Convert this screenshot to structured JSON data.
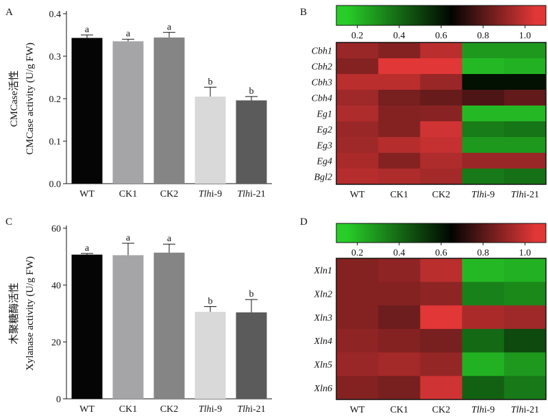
{
  "panels": {
    "a": "A",
    "b": "B",
    "c": "C",
    "d": "D"
  },
  "chart_data": [
    {
      "id": "A",
      "type": "bar",
      "categories": [
        {
          "pre": "",
          "it": "",
          "post": "WT"
        },
        {
          "pre": "",
          "it": "",
          "post": "CK1"
        },
        {
          "pre": "",
          "it": "",
          "post": "CK2"
        },
        {
          "pre": "",
          "it": "Tlh",
          "post": "i-9"
        },
        {
          "pre": "",
          "it": "Tlh",
          "post": "i-21"
        }
      ],
      "values": [
        0.343,
        0.335,
        0.344,
        0.205,
        0.196
      ],
      "errors": [
        0.007,
        0.005,
        0.012,
        0.022,
        0.009
      ],
      "letters": [
        "a",
        "a",
        "a",
        "b",
        "b"
      ],
      "colors": [
        "#050505",
        "#a5a5a8",
        "#858585",
        "#d9d9d9",
        "#5b5b5b"
      ],
      "ylabel_cn": "CMCase活性",
      "ylabel_en": "CMCase activity (U/g FW)",
      "ylim": [
        0,
        0.4
      ],
      "yticks": [
        "0.0",
        "0.1",
        "0.2",
        "0.3",
        "0.4"
      ],
      "ytick_values": [
        0,
        0.1,
        0.2,
        0.3,
        0.4
      ]
    },
    {
      "id": "B",
      "type": "heatmap",
      "colorbar_ticks": [
        "0.2",
        "0.4",
        "0.6",
        "0.8",
        "1.0"
      ],
      "colorbar_values": [
        0.2,
        0.4,
        0.6,
        0.8,
        1.0
      ],
      "colorbar_range": [
        0.1,
        1.1
      ],
      "rows": [
        "Cbh1",
        "Cbh2",
        "Cbh3",
        "Cbh4",
        "Eg1",
        "Eg2",
        "Eg3",
        "Eg4",
        "Bgl2"
      ],
      "columns": [
        {
          "pre": "",
          "it": "",
          "post": "WT"
        },
        {
          "pre": "",
          "it": "",
          "post": "CK1"
        },
        {
          "pre": "",
          "it": "",
          "post": "CK2"
        },
        {
          "pre": "",
          "it": "Tlh",
          "post": "i-9"
        },
        {
          "pre": "",
          "it": "Tlh",
          "post": "i-21"
        }
      ],
      "values": [
        [
          0.92,
          0.88,
          0.98,
          0.28,
          0.28
        ],
        [
          0.88,
          1.05,
          1.05,
          0.2,
          0.22
        ],
        [
          0.98,
          0.98,
          0.92,
          0.62,
          0.62
        ],
        [
          0.93,
          0.86,
          0.83,
          0.78,
          0.82
        ],
        [
          0.96,
          0.88,
          0.89,
          0.2,
          0.2
        ],
        [
          0.92,
          0.88,
          1.02,
          0.35,
          0.37
        ],
        [
          0.93,
          0.97,
          1.0,
          0.28,
          0.28
        ],
        [
          0.95,
          0.88,
          0.96,
          0.92,
          0.92
        ],
        [
          0.97,
          0.96,
          0.94,
          0.36,
          0.38
        ]
      ]
    },
    {
      "id": "C",
      "type": "bar",
      "categories": [
        {
          "pre": "",
          "it": "",
          "post": "WT"
        },
        {
          "pre": "",
          "it": "",
          "post": "CK1"
        },
        {
          "pre": "",
          "it": "",
          "post": "CK2"
        },
        {
          "pre": "",
          "it": "Tlh",
          "post": "i-9"
        },
        {
          "pre": "",
          "it": "Tlh",
          "post": "i-21"
        }
      ],
      "values": [
        50.7,
        50.5,
        51.4,
        30.6,
        30.4
      ],
      "errors": [
        0.4,
        4.2,
        3.0,
        1.8,
        4.5
      ],
      "letters": [
        "a",
        "a",
        "a",
        "b",
        "b"
      ],
      "colors": [
        "#050505",
        "#a5a5a8",
        "#858585",
        "#d9d9d9",
        "#5b5b5b"
      ],
      "ylabel_cn": "木聚糖酶活性",
      "ylabel_en": "Xylanase activity (U/g FW)",
      "ylim": [
        0,
        60
      ],
      "yticks": [
        "0",
        "20",
        "40",
        "60"
      ],
      "ytick_values": [
        0,
        20,
        40,
        60
      ]
    },
    {
      "id": "D",
      "type": "heatmap",
      "colorbar_ticks": [
        "0.2",
        "0.4",
        "0.6",
        "0.8",
        "1.0"
      ],
      "colorbar_values": [
        0.2,
        0.4,
        0.6,
        0.8,
        1.0
      ],
      "colorbar_range": [
        0.1,
        1.1
      ],
      "rows": [
        "Xln1",
        "Xln2",
        "Xln3",
        "Xln4",
        "Xln5",
        "Xln6"
      ],
      "columns": [
        {
          "pre": "",
          "it": "",
          "post": "WT"
        },
        {
          "pre": "",
          "it": "",
          "post": "CK1"
        },
        {
          "pre": "",
          "it": "",
          "post": "CK2"
        },
        {
          "pre": "",
          "it": "Tlh",
          "post": "i-9"
        },
        {
          "pre": "",
          "it": "Tlh",
          "post": "i-21"
        }
      ],
      "values": [
        [
          0.88,
          0.9,
          0.98,
          0.2,
          0.22
        ],
        [
          0.88,
          0.88,
          0.9,
          0.34,
          0.32
        ],
        [
          0.88,
          0.84,
          1.05,
          0.95,
          0.93
        ],
        [
          0.9,
          0.88,
          0.86,
          0.4,
          0.48
        ],
        [
          0.92,
          0.94,
          0.91,
          0.22,
          0.28
        ],
        [
          0.88,
          0.86,
          1.02,
          0.42,
          0.36
        ]
      ]
    }
  ]
}
